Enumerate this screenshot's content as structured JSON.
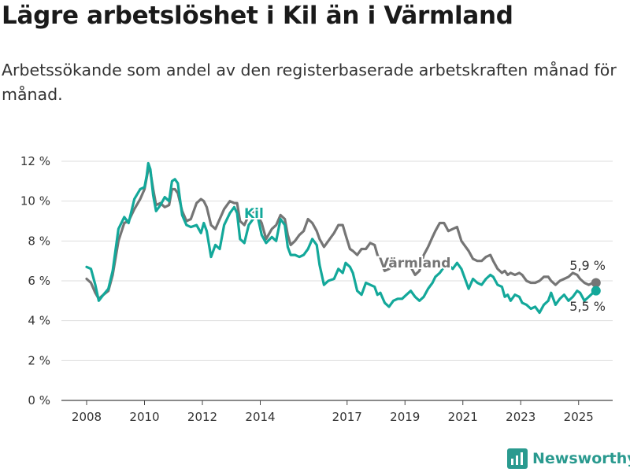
{
  "title": "Lägre arbetslöshet i Kil än i Värmland",
  "subtitle": "Arbetssökande som andel av den registerbaserade arbetskraften månad för månad.",
  "brand": "Newsworthy",
  "colors": {
    "kil": "#13a89a",
    "varmland": "#757575",
    "grid": "#dddddd",
    "brand": "#2a9a8f"
  },
  "chart_data": {
    "type": "line",
    "title": "Lägre arbetslöshet i Kil än i Värmland",
    "ylim": [
      0,
      12
    ],
    "yticks": [
      0,
      2,
      4,
      6,
      8,
      10,
      12
    ],
    "ytick_labels": [
      "0 %",
      "2 %",
      "4 %",
      "6 %",
      "8 %",
      "10 %",
      "12 %"
    ],
    "xlim": [
      2008,
      2026.6
    ],
    "xticks": [
      2008,
      2010,
      2012,
      2014,
      2017,
      2019,
      2021,
      2023,
      2025
    ],
    "xtick_labels": [
      "2008",
      "2010",
      "2012",
      "2014",
      "2017",
      "2019",
      "2021",
      "2023",
      "2025"
    ],
    "grid": true,
    "legend": "inline labels",
    "series": [
      {
        "name": "Kil",
        "end_label": "5,5 %",
        "points": [
          [
            2008,
            6.7
          ],
          [
            2008.15,
            6.6
          ],
          [
            2008.3,
            5.8
          ],
          [
            2008.42,
            5.0
          ],
          [
            2008.58,
            5.3
          ],
          [
            2008.75,
            5.6
          ],
          [
            2008.9,
            6.5
          ],
          [
            2009.1,
            8.6
          ],
          [
            2009.3,
            9.2
          ],
          [
            2009.45,
            8.9
          ],
          [
            2009.65,
            10.1
          ],
          [
            2009.85,
            10.6
          ],
          [
            2010,
            10.7
          ],
          [
            2010.08,
            11.3
          ],
          [
            2010.13,
            11.9
          ],
          [
            2010.2,
            11.6
          ],
          [
            2010.3,
            10.3
          ],
          [
            2010.4,
            9.5
          ],
          [
            2010.55,
            9.8
          ],
          [
            2010.7,
            10.2
          ],
          [
            2010.85,
            10.0
          ],
          [
            2010.95,
            11.0
          ],
          [
            2011.05,
            11.1
          ],
          [
            2011.15,
            10.9
          ],
          [
            2011.3,
            9.3
          ],
          [
            2011.45,
            8.8
          ],
          [
            2011.6,
            8.7
          ],
          [
            2011.8,
            8.8
          ],
          [
            2011.95,
            8.4
          ],
          [
            2012.05,
            8.9
          ],
          [
            2012.15,
            8.5
          ],
          [
            2012.3,
            7.2
          ],
          [
            2012.45,
            7.8
          ],
          [
            2012.6,
            7.6
          ],
          [
            2012.75,
            8.8
          ],
          [
            2012.95,
            9.4
          ],
          [
            2013.1,
            9.7
          ],
          [
            2013.2,
            9.4
          ],
          [
            2013.3,
            8.1
          ],
          [
            2013.45,
            7.9
          ],
          [
            2013.6,
            8.8
          ],
          [
            2013.75,
            9.1
          ],
          [
            2013.9,
            9.3
          ],
          [
            2014.05,
            8.3
          ],
          [
            2014.2,
            7.9
          ],
          [
            2014.4,
            8.2
          ],
          [
            2014.55,
            8.0
          ],
          [
            2014.7,
            9.1
          ],
          [
            2014.85,
            8.8
          ],
          [
            2014.95,
            7.7
          ],
          [
            2015.05,
            7.3
          ],
          [
            2015.2,
            7.3
          ],
          [
            2015.35,
            7.2
          ],
          [
            2015.5,
            7.3
          ],
          [
            2015.65,
            7.6
          ],
          [
            2015.8,
            8.1
          ],
          [
            2015.95,
            7.8
          ],
          [
            2016.05,
            6.8
          ],
          [
            2016.2,
            5.8
          ],
          [
            2016.35,
            6.0
          ],
          [
            2016.55,
            6.1
          ],
          [
            2016.7,
            6.6
          ],
          [
            2016.85,
            6.4
          ],
          [
            2016.95,
            6.9
          ],
          [
            2017.1,
            6.7
          ],
          [
            2017.2,
            6.4
          ],
          [
            2017.35,
            5.5
          ],
          [
            2017.5,
            5.3
          ],
          [
            2017.65,
            5.9
          ],
          [
            2017.8,
            5.8
          ],
          [
            2017.95,
            5.7
          ],
          [
            2018.05,
            5.3
          ],
          [
            2018.15,
            5.4
          ],
          [
            2018.3,
            4.9
          ],
          [
            2018.45,
            4.7
          ],
          [
            2018.6,
            5.0
          ],
          [
            2018.75,
            5.1
          ],
          [
            2018.9,
            5.1
          ],
          [
            2019.05,
            5.3
          ],
          [
            2019.2,
            5.5
          ],
          [
            2019.35,
            5.2
          ],
          [
            2019.5,
            5.0
          ],
          [
            2019.65,
            5.2
          ],
          [
            2019.8,
            5.6
          ],
          [
            2019.95,
            5.9
          ],
          [
            2020.05,
            6.2
          ],
          [
            2020.2,
            6.4
          ],
          [
            2020.35,
            6.7
          ],
          [
            2020.5,
            6.8
          ],
          [
            2020.65,
            6.6
          ],
          [
            2020.8,
            6.9
          ],
          [
            2020.95,
            6.6
          ],
          [
            2021.05,
            6.2
          ],
          [
            2021.2,
            5.6
          ],
          [
            2021.35,
            6.1
          ],
          [
            2021.5,
            5.9
          ],
          [
            2021.65,
            5.8
          ],
          [
            2021.8,
            6.1
          ],
          [
            2021.95,
            6.3
          ],
          [
            2022.05,
            6.2
          ],
          [
            2022.2,
            5.8
          ],
          [
            2022.35,
            5.7
          ],
          [
            2022.45,
            5.2
          ],
          [
            2022.55,
            5.3
          ],
          [
            2022.65,
            5.0
          ],
          [
            2022.8,
            5.3
          ],
          [
            2022.95,
            5.2
          ],
          [
            2023.05,
            4.9
          ],
          [
            2023.2,
            4.8
          ],
          [
            2023.35,
            4.6
          ],
          [
            2023.5,
            4.7
          ],
          [
            2023.65,
            4.4
          ],
          [
            2023.8,
            4.8
          ],
          [
            2023.95,
            5.0
          ],
          [
            2024.05,
            5.4
          ],
          [
            2024.2,
            4.8
          ],
          [
            2024.35,
            5.1
          ],
          [
            2024.5,
            5.3
          ],
          [
            2024.65,
            5.0
          ],
          [
            2024.8,
            5.2
          ],
          [
            2024.95,
            5.5
          ],
          [
            2025.05,
            5.4
          ],
          [
            2025.2,
            5.0
          ],
          [
            2025.35,
            5.2
          ],
          [
            2025.5,
            5.4
          ],
          [
            2025.6,
            5.5
          ]
        ]
      },
      {
        "name": "Värmland",
        "end_label": "5,9 %",
        "points": [
          [
            2008,
            6.1
          ],
          [
            2008.15,
            5.9
          ],
          [
            2008.3,
            5.4
          ],
          [
            2008.42,
            5.1
          ],
          [
            2008.58,
            5.3
          ],
          [
            2008.75,
            5.5
          ],
          [
            2008.9,
            6.3
          ],
          [
            2009.1,
            8.0
          ],
          [
            2009.3,
            8.9
          ],
          [
            2009.45,
            9.0
          ],
          [
            2009.65,
            9.6
          ],
          [
            2009.85,
            10.1
          ],
          [
            2010,
            10.6
          ],
          [
            2010.13,
            11.6
          ],
          [
            2010.2,
            11.5
          ],
          [
            2010.3,
            10.6
          ],
          [
            2010.4,
            9.8
          ],
          [
            2010.55,
            9.9
          ],
          [
            2010.7,
            9.7
          ],
          [
            2010.85,
            9.8
          ],
          [
            2010.95,
            10.6
          ],
          [
            2011.05,
            10.6
          ],
          [
            2011.15,
            10.4
          ],
          [
            2011.3,
            9.5
          ],
          [
            2011.45,
            9.0
          ],
          [
            2011.6,
            9.1
          ],
          [
            2011.8,
            9.9
          ],
          [
            2011.95,
            10.1
          ],
          [
            2012.05,
            10.0
          ],
          [
            2012.15,
            9.7
          ],
          [
            2012.3,
            8.8
          ],
          [
            2012.45,
            8.6
          ],
          [
            2012.6,
            9.1
          ],
          [
            2012.75,
            9.6
          ],
          [
            2012.95,
            10.0
          ],
          [
            2013.1,
            9.9
          ],
          [
            2013.2,
            9.9
          ],
          [
            2013.3,
            9.0
          ],
          [
            2013.45,
            8.8
          ],
          [
            2013.6,
            9.3
          ],
          [
            2013.75,
            9.5
          ],
          [
            2013.9,
            9.3
          ],
          [
            2014.05,
            8.9
          ],
          [
            2014.2,
            8.1
          ],
          [
            2014.4,
            8.6
          ],
          [
            2014.55,
            8.8
          ],
          [
            2014.7,
            9.3
          ],
          [
            2014.85,
            9.1
          ],
          [
            2014.95,
            8.3
          ],
          [
            2015.05,
            7.8
          ],
          [
            2015.2,
            8.0
          ],
          [
            2015.35,
            8.3
          ],
          [
            2015.5,
            8.5
          ],
          [
            2015.65,
            9.1
          ],
          [
            2015.8,
            8.9
          ],
          [
            2015.95,
            8.5
          ],
          [
            2016.05,
            8.1
          ],
          [
            2016.2,
            7.7
          ],
          [
            2016.35,
            8.0
          ],
          [
            2016.55,
            8.4
          ],
          [
            2016.7,
            8.8
          ],
          [
            2016.85,
            8.8
          ],
          [
            2016.95,
            8.3
          ],
          [
            2017.1,
            7.6
          ],
          [
            2017.2,
            7.5
          ],
          [
            2017.35,
            7.3
          ],
          [
            2017.5,
            7.6
          ],
          [
            2017.65,
            7.6
          ],
          [
            2017.8,
            7.9
          ],
          [
            2017.95,
            7.8
          ],
          [
            2018.05,
            7.3
          ],
          [
            2018.15,
            7.0
          ],
          [
            2018.3,
            6.5
          ],
          [
            2018.45,
            6.6
          ],
          [
            2018.6,
            6.8
          ],
          [
            2018.75,
            6.7
          ],
          [
            2018.9,
            7.0
          ],
          [
            2019.05,
            6.8
          ],
          [
            2019.2,
            6.7
          ],
          [
            2019.35,
            6.3
          ],
          [
            2019.5,
            6.5
          ],
          [
            2019.65,
            7.3
          ],
          [
            2019.8,
            7.7
          ],
          [
            2019.95,
            8.2
          ],
          [
            2020.05,
            8.5
          ],
          [
            2020.2,
            8.9
          ],
          [
            2020.35,
            8.9
          ],
          [
            2020.5,
            8.5
          ],
          [
            2020.65,
            8.6
          ],
          [
            2020.8,
            8.7
          ],
          [
            2020.95,
            8.0
          ],
          [
            2021.05,
            7.8
          ],
          [
            2021.2,
            7.5
          ],
          [
            2021.35,
            7.1
          ],
          [
            2021.5,
            7.0
          ],
          [
            2021.65,
            7.0
          ],
          [
            2021.8,
            7.2
          ],
          [
            2021.95,
            7.3
          ],
          [
            2022.05,
            7.0
          ],
          [
            2022.2,
            6.6
          ],
          [
            2022.35,
            6.4
          ],
          [
            2022.45,
            6.5
          ],
          [
            2022.55,
            6.3
          ],
          [
            2022.65,
            6.4
          ],
          [
            2022.8,
            6.3
          ],
          [
            2022.95,
            6.4
          ],
          [
            2023.05,
            6.3
          ],
          [
            2023.2,
            6.0
          ],
          [
            2023.35,
            5.9
          ],
          [
            2023.5,
            5.9
          ],
          [
            2023.65,
            6.0
          ],
          [
            2023.8,
            6.2
          ],
          [
            2023.95,
            6.2
          ],
          [
            2024.05,
            6.0
          ],
          [
            2024.2,
            5.8
          ],
          [
            2024.35,
            6.0
          ],
          [
            2024.5,
            6.1
          ],
          [
            2024.65,
            6.2
          ],
          [
            2024.8,
            6.4
          ],
          [
            2024.95,
            6.3
          ],
          [
            2025.05,
            6.1
          ],
          [
            2025.2,
            5.9
          ],
          [
            2025.35,
            5.8
          ],
          [
            2025.5,
            5.9
          ],
          [
            2025.6,
            5.9
          ]
        ]
      }
    ]
  }
}
